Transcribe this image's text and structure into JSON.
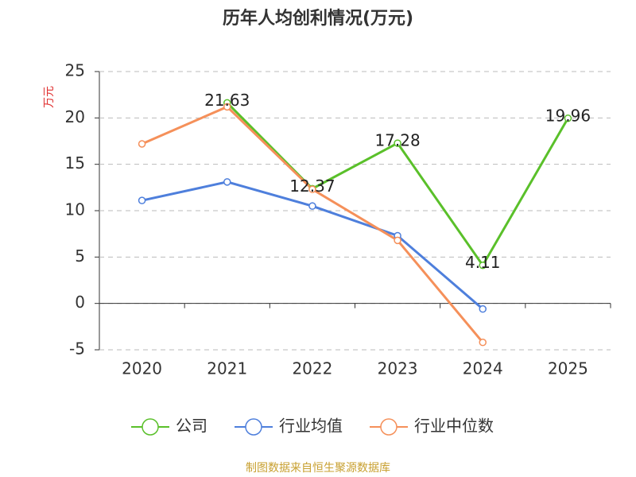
{
  "chart_data": {
    "type": "line",
    "title": "历年人均创利情况(万元)",
    "y_label": "万元",
    "categories": [
      "2020",
      "2021",
      "2022",
      "2023",
      "2024",
      "2025"
    ],
    "series": [
      {
        "name": "公司",
        "color": "#5ac02a",
        "values": [
          null,
          21.63,
          12.37,
          17.28,
          4.11,
          19.96
        ],
        "show_labels": true
      },
      {
        "name": "行业均值",
        "color": "#4e7fdc",
        "values": [
          11.1,
          13.1,
          10.5,
          7.3,
          -0.6,
          null
        ],
        "show_labels": false
      },
      {
        "name": "行业中位数",
        "color": "#f5905a",
        "values": [
          17.2,
          21.2,
          12.3,
          6.8,
          -4.2,
          null
        ],
        "show_labels": false
      }
    ],
    "ylim": [
      -5,
      25
    ],
    "yticks": [
      -5,
      0,
      5,
      10,
      15,
      20,
      25
    ],
    "grid": true,
    "legend": "bottom",
    "source": "制图数据来自恒生聚源数据库"
  }
}
